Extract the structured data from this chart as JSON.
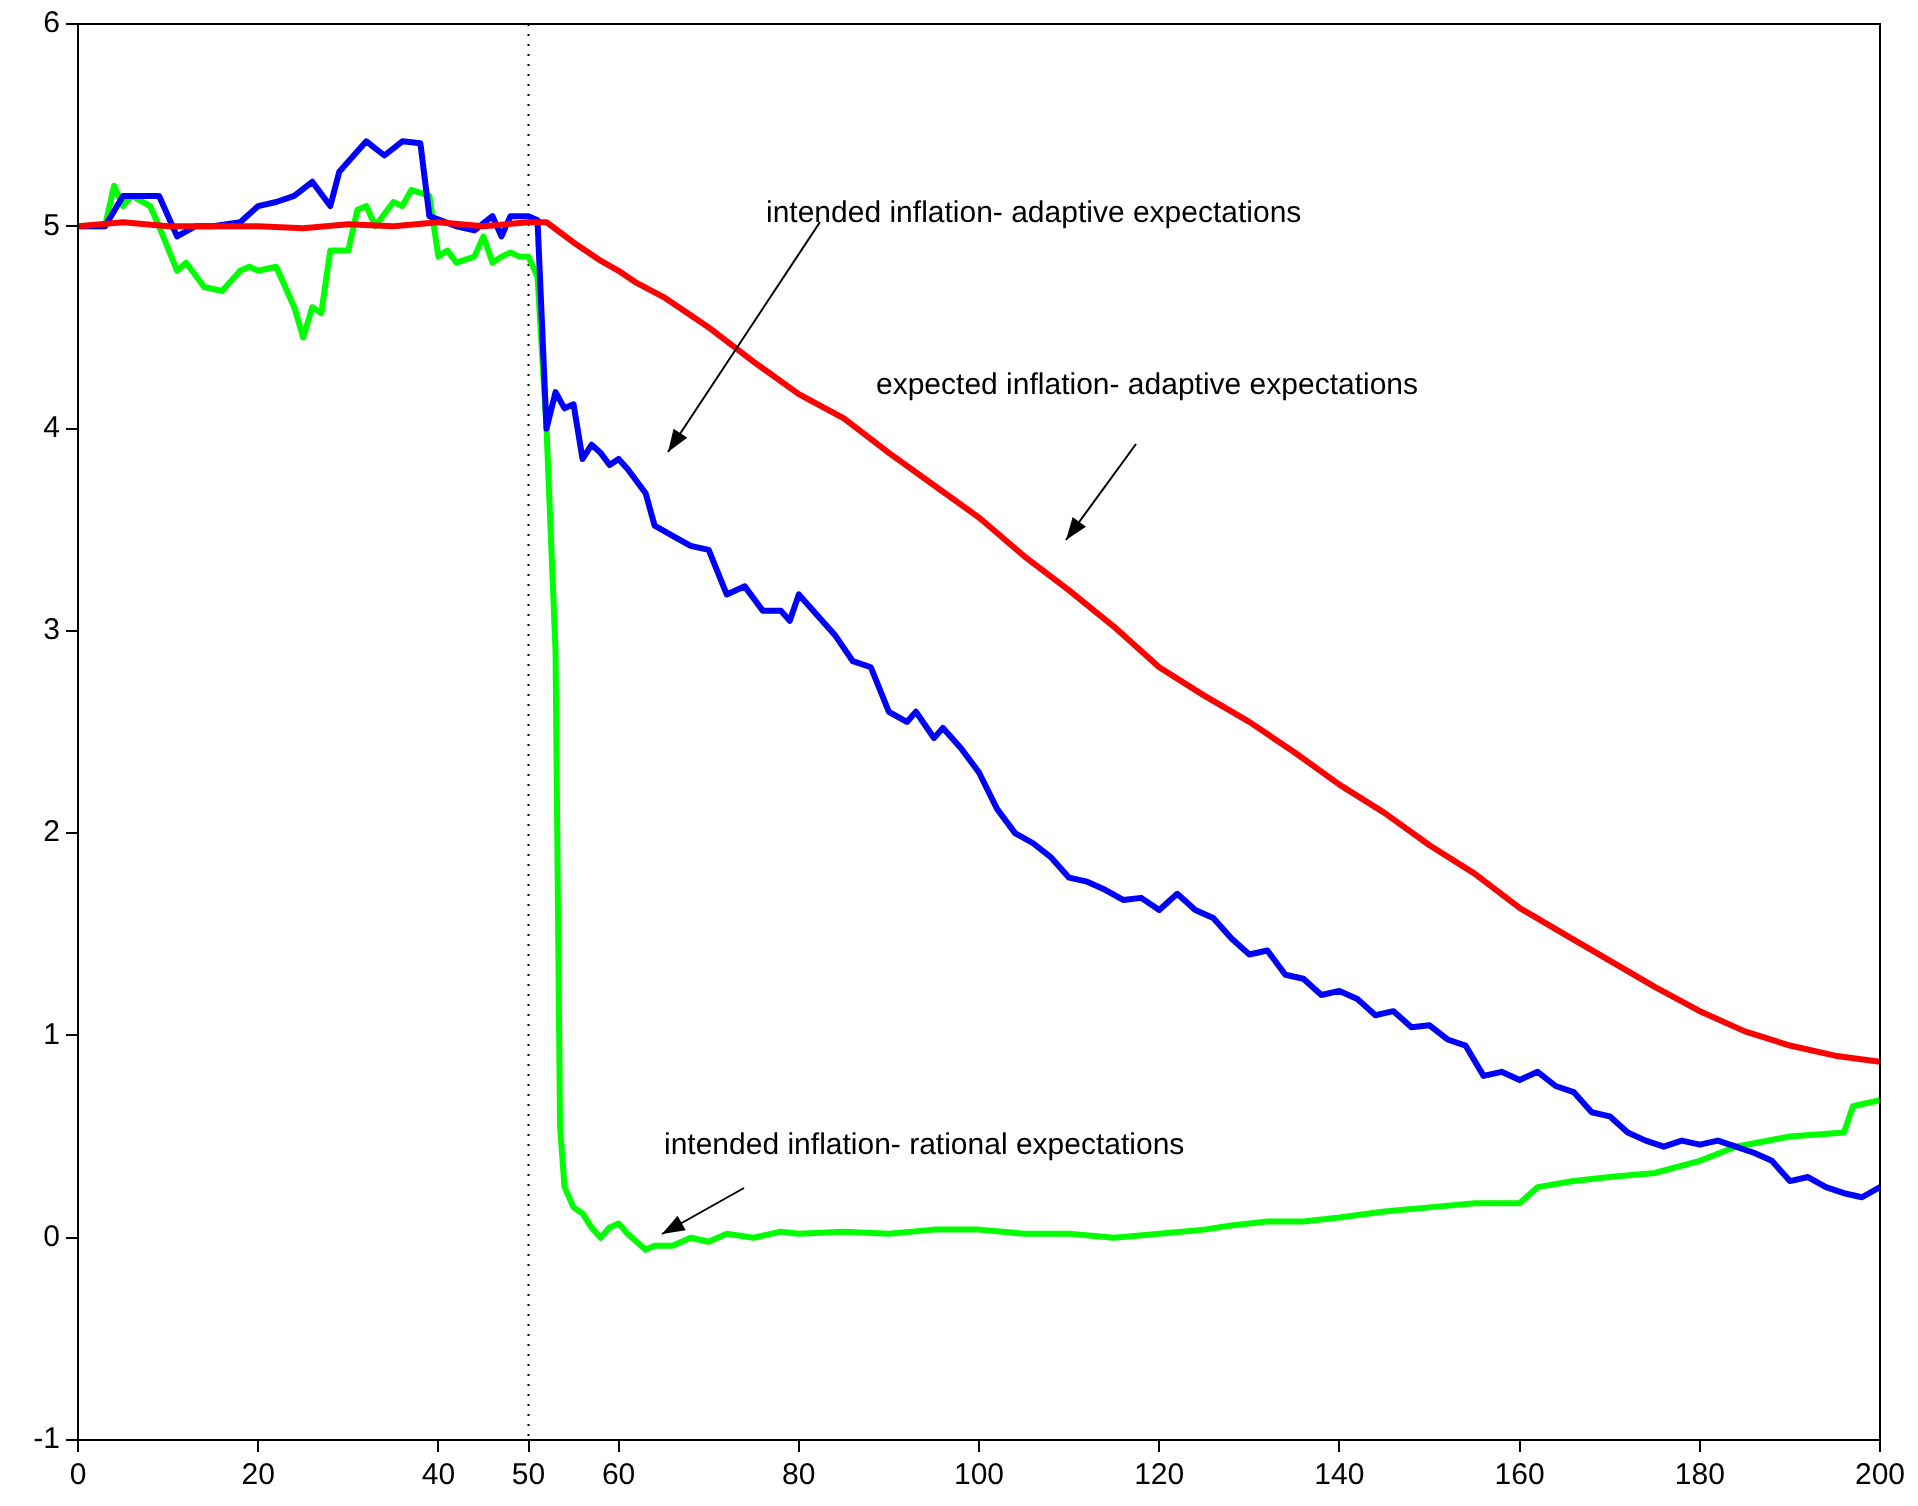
{
  "chart_data": {
    "type": "line",
    "xlim": [
      0,
      200
    ],
    "ylim": [
      -1,
      6
    ],
    "xticks": [
      0,
      20,
      40,
      50,
      60,
      80,
      100,
      120,
      140,
      160,
      180,
      200
    ],
    "yticks": [
      -1,
      0,
      1,
      2,
      3,
      4,
      5,
      6
    ],
    "grid": false,
    "legend": false,
    "marker": "none",
    "line_style": "solid",
    "series": [
      {
        "color": "#ff0000",
        "x": [
          0,
          5,
          10,
          15,
          20,
          25,
          30,
          35,
          40,
          45,
          50,
          52,
          55,
          58,
          60,
          62,
          65,
          68,
          70,
          75,
          80,
          85,
          90,
          95,
          100,
          105,
          110,
          115,
          120,
          125,
          130,
          135,
          140,
          145,
          150,
          155,
          160,
          165,
          170,
          175,
          180,
          185,
          190,
          195,
          200
        ],
        "values": [
          5,
          5.02,
          5,
          5,
          5,
          4.99,
          5.01,
          5,
          5.02,
          5,
          5.02,
          5.02,
          4.92,
          4.83,
          4.78,
          4.72,
          4.65,
          4.56,
          4.5,
          4.33,
          4.17,
          4.05,
          3.88,
          3.72,
          3.56,
          3.37,
          3.2,
          3.02,
          2.82,
          2.68,
          2.55,
          2.4,
          2.24,
          2.1,
          1.94,
          1.8,
          1.63,
          1.5,
          1.37,
          1.24,
          1.12,
          1.02,
          0.95,
          0.9,
          0.87
        ]
      },
      {
        "color": "#0000ff",
        "x": [
          0,
          3,
          5,
          7,
          9,
          11,
          13,
          15,
          18,
          20,
          22,
          24,
          26,
          28,
          29,
          32,
          34,
          36,
          38,
          39,
          42,
          44,
          46,
          47,
          48,
          50,
          51,
          52,
          53,
          54,
          55,
          56,
          57,
          58,
          59,
          60,
          61,
          63,
          64,
          66,
          68,
          70,
          72,
          74,
          76,
          78,
          79,
          80,
          82,
          84,
          86,
          88,
          90,
          92,
          93,
          95,
          96,
          98,
          100,
          102,
          104,
          106,
          108,
          110,
          112,
          114,
          116,
          118,
          120,
          122,
          124,
          126,
          128,
          130,
          132,
          134,
          136,
          138,
          140,
          142,
          144,
          146,
          148,
          150,
          152,
          154,
          156,
          158,
          160,
          162,
          164,
          166,
          168,
          170,
          172,
          174,
          176,
          178,
          180,
          182,
          184,
          186,
          188,
          190,
          192,
          194,
          196,
          198,
          200
        ],
        "values": [
          5,
          5,
          5.15,
          5.15,
          5.15,
          4.95,
          5,
          5,
          5.02,
          5.1,
          5.12,
          5.15,
          5.22,
          5.1,
          5.27,
          5.42,
          5.35,
          5.42,
          5.41,
          5.05,
          5,
          4.98,
          5.05,
          4.95,
          5.05,
          5.05,
          5.03,
          4,
          4.18,
          4.1,
          4.12,
          3.85,
          3.92,
          3.88,
          3.82,
          3.85,
          3.8,
          3.68,
          3.52,
          3.47,
          3.42,
          3.4,
          3.18,
          3.22,
          3.1,
          3.1,
          3.05,
          3.18,
          3.08,
          2.98,
          2.85,
          2.82,
          2.6,
          2.55,
          2.6,
          2.47,
          2.52,
          2.42,
          2.3,
          2.12,
          2,
          1.95,
          1.88,
          1.78,
          1.76,
          1.72,
          1.67,
          1.68,
          1.62,
          1.7,
          1.62,
          1.58,
          1.48,
          1.4,
          1.42,
          1.3,
          1.28,
          1.2,
          1.22,
          1.18,
          1.1,
          1.12,
          1.04,
          1.05,
          0.98,
          0.95,
          0.8,
          0.82,
          0.78,
          0.82,
          0.75,
          0.72,
          0.62,
          0.6,
          0.52,
          0.48,
          0.45,
          0.48,
          0.46,
          0.48,
          0.45,
          0.42,
          0.38,
          0.28,
          0.3,
          0.25,
          0.22,
          0.2,
          0.25
        ]
      },
      {
        "color": "#00ff00",
        "x": [
          0,
          3,
          4,
          5,
          6,
          8,
          9,
          11,
          12,
          14,
          16,
          18,
          19,
          20,
          22,
          24,
          25,
          26,
          27,
          28,
          30,
          31,
          32,
          33,
          35,
          36,
          37,
          39,
          40,
          41,
          42,
          44,
          45,
          46,
          47,
          48,
          49,
          50,
          51,
          52,
          53,
          53.5,
          54,
          55,
          56,
          57,
          58,
          59,
          60,
          61,
          62,
          63,
          64,
          66,
          68,
          70,
          72,
          75,
          78,
          80,
          85,
          90,
          95,
          100,
          105,
          110,
          115,
          120,
          125,
          128,
          132,
          136,
          140,
          145,
          150,
          155,
          160,
          162,
          166,
          170,
          175,
          180,
          184,
          190,
          196,
          197,
          200
        ],
        "values": [
          5,
          5,
          5.2,
          5.1,
          5.15,
          5.1,
          5,
          4.78,
          4.82,
          4.7,
          4.68,
          4.78,
          4.8,
          4.78,
          4.8,
          4.6,
          4.45,
          4.6,
          4.57,
          4.88,
          4.88,
          5.08,
          5.1,
          5,
          5.12,
          5.1,
          5.18,
          5.15,
          4.85,
          4.88,
          4.82,
          4.85,
          4.95,
          4.82,
          4.85,
          4.87,
          4.85,
          4.85,
          4.75,
          4,
          2.9,
          0.55,
          0.25,
          0.15,
          0.12,
          0.05,
          0,
          0.05,
          0.07,
          0.02,
          -0.02,
          -0.06,
          -0.04,
          -0.04,
          0,
          -0.02,
          0.02,
          0,
          0.03,
          0.02,
          0.03,
          0.02,
          0.04,
          0.04,
          0.02,
          0.02,
          0,
          0.02,
          0.04,
          0.06,
          0.08,
          0.08,
          0.1,
          0.13,
          0.15,
          0.17,
          0.17,
          0.25,
          0.28,
          0.3,
          0.32,
          0.38,
          0.45,
          0.5,
          0.52,
          0.65,
          0.68
        ]
      }
    ],
    "ref_lines": [
      {
        "axis": "x",
        "value": 50,
        "color": "#000000",
        "line_style": "dotted"
      }
    ],
    "annotations": [
      "intended inflation- adaptive expectations",
      "expected inflation- adaptive expectations",
      "intended inflation- rational expectations"
    ]
  }
}
